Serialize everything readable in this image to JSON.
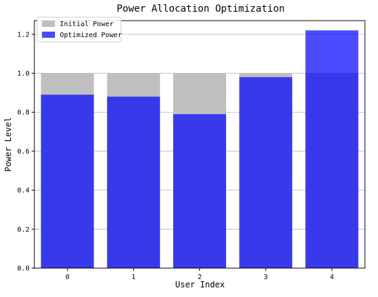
{
  "chart_data": {
    "type": "bar",
    "title": "Power Allocation Optimization",
    "xlabel": "User Index",
    "ylabel": "Power Level",
    "categories": [
      "0",
      "1",
      "2",
      "3",
      "4"
    ],
    "series": [
      {
        "name": "Initial Power",
        "values": [
          1.0,
          1.0,
          1.0,
          1.0,
          1.0
        ],
        "color": "#bfbfbf",
        "opacity": 1
      },
      {
        "name": "Optimized Power",
        "values": [
          0.89,
          0.88,
          0.79,
          0.98,
          1.22
        ],
        "color": "#0000ff",
        "opacity": 0.7
      }
    ],
    "ylim": [
      0,
      1.27
    ],
    "yticks": [
      0.0,
      0.2,
      0.4,
      0.6,
      0.8,
      1.0,
      1.2
    ],
    "ytick_labels": [
      "0.0",
      "0.2",
      "0.4",
      "0.6",
      "0.8",
      "1.0",
      "1.2"
    ],
    "xtick_labels": [
      "0",
      "1",
      "2",
      "3",
      "4"
    ],
    "grid": "y",
    "legend": {
      "position": "top-left",
      "entries": [
        "Initial Power",
        "Optimized Power"
      ]
    }
  }
}
